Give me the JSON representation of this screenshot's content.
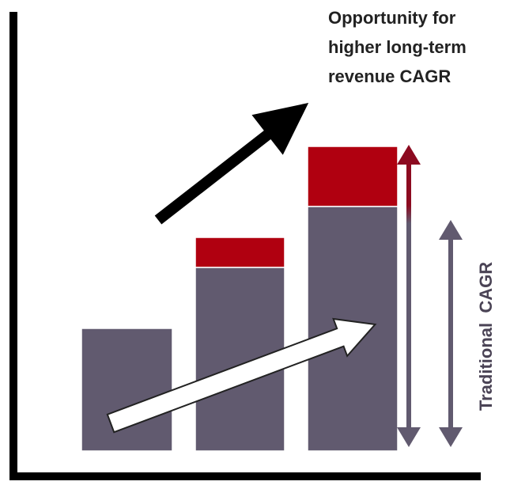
{
  "annotations": {
    "opportunity": [
      "Opportunity  for",
      "higher long-term",
      "revenue CAGR"
    ],
    "traditional": "Traditional  CAGR"
  }
}
